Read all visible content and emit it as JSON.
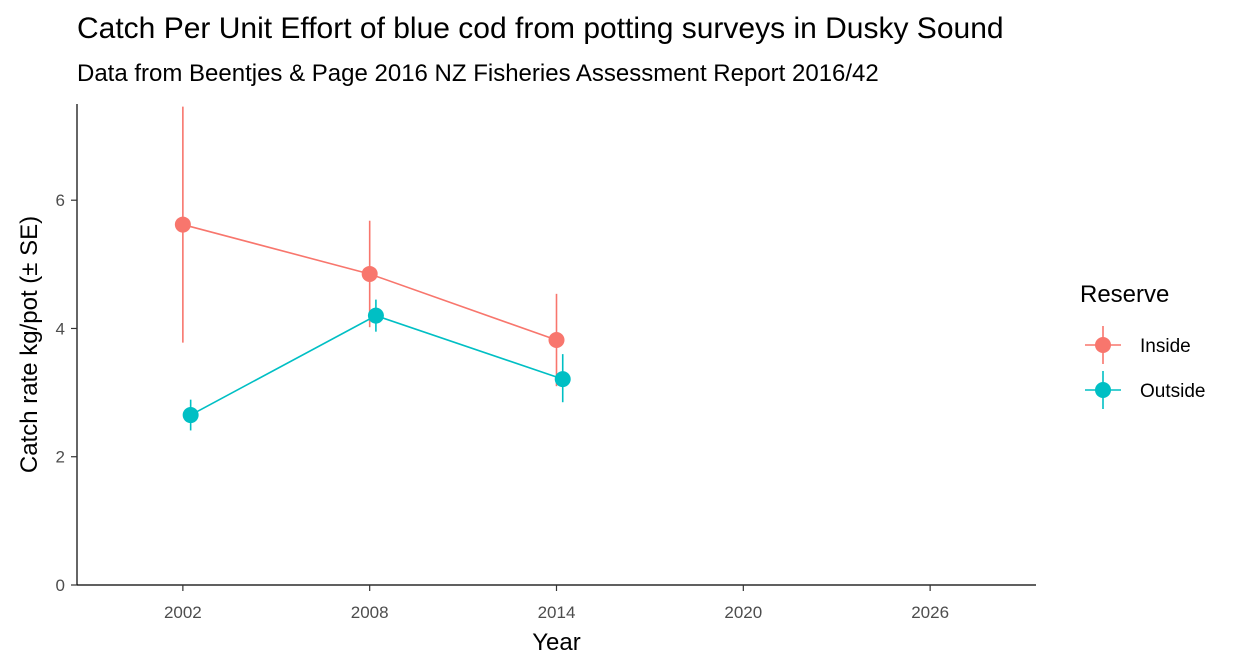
{
  "chart_data": {
    "type": "line",
    "title": "Catch Per Unit Effort of blue cod from potting surveys in Dusky Sound",
    "subtitle": "Data from Beentjes & Page 2016 NZ Fisheries Assessment Report 2016/42",
    "xlabel": "Year",
    "ylabel": "Catch rate kg/pot (± SE)",
    "xlim": [
      1998.6,
      2029.4
    ],
    "ylim": [
      0,
      7.5
    ],
    "xticks": [
      2002,
      2008,
      2014,
      2020,
      2026
    ],
    "yticks": [
      0,
      2,
      4,
      6
    ],
    "grid": false,
    "legend": {
      "title": "Reserve",
      "position": "right"
    },
    "series": [
      {
        "name": "Inside",
        "color": "#F8766D",
        "points": [
          {
            "x": 2002,
            "y": 5.62,
            "ymin": 3.78,
            "ymax": 7.46
          },
          {
            "x": 2008,
            "y": 4.85,
            "ymin": 4.02,
            "ymax": 5.68
          },
          {
            "x": 2014,
            "y": 3.82,
            "ymin": 3.1,
            "ymax": 4.54
          }
        ]
      },
      {
        "name": "Outside",
        "color": "#00BFC4",
        "points": [
          {
            "x": 2002.25,
            "y": 2.65,
            "ymin": 2.41,
            "ymax": 2.89
          },
          {
            "x": 2008.2,
            "y": 4.2,
            "ymin": 3.95,
            "ymax": 4.45
          },
          {
            "x": 2014.2,
            "y": 3.21,
            "ymin": 2.85,
            "ymax": 3.6
          }
        ]
      }
    ]
  }
}
